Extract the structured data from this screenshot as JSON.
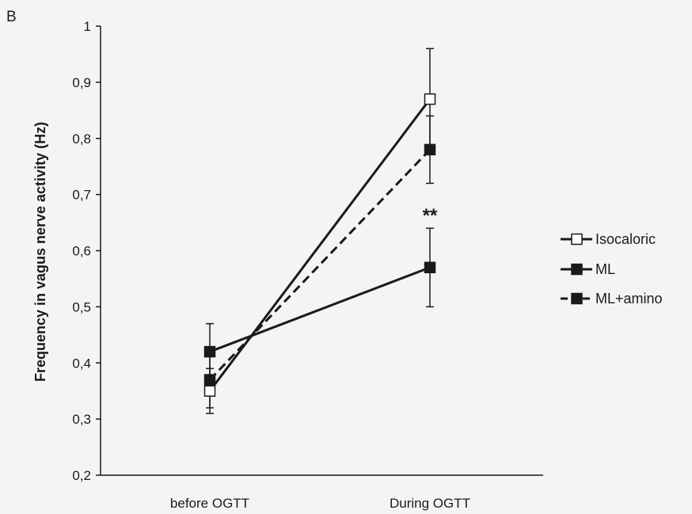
{
  "chart_data": {
    "type": "line",
    "panel_label": "B",
    "title": "",
    "xlabel": "",
    "ylabel": "Frequency in vagus nerve activity (Hz)",
    "categories": [
      "before OGTT",
      "During OGTT"
    ],
    "ylim": [
      0.2,
      1.0
    ],
    "yticks": [
      0.2,
      0.3,
      0.4,
      0.5,
      0.6,
      0.7,
      0.8,
      0.9,
      1.0
    ],
    "ytick_labels": [
      "0,2",
      "0,3",
      "0,4",
      "0,5",
      "0,6",
      "0,7",
      "0,8",
      "0,9",
      "1"
    ],
    "grid": false,
    "legend_position": "right",
    "series": [
      {
        "name": "Isocaloric",
        "values": [
          0.35,
          0.87
        ],
        "errors": [
          0.04,
          0.09
        ],
        "marker": "open-square",
        "line": "solid",
        "color": "#1a1a1a"
      },
      {
        "name": "ML",
        "values": [
          0.42,
          0.57
        ],
        "errors": [
          0.05,
          0.07
        ],
        "marker": "filled-square",
        "line": "solid",
        "color": "#1a1a1a"
      },
      {
        "name": "ML+amino",
        "values": [
          0.37,
          0.78
        ],
        "errors": [
          0.05,
          0.06
        ],
        "marker": "filled-square",
        "line": "dashed",
        "color": "#1a1a1a"
      }
    ],
    "annotations": [
      {
        "text": "**",
        "category": "During OGTT",
        "value": 0.64
      }
    ]
  }
}
